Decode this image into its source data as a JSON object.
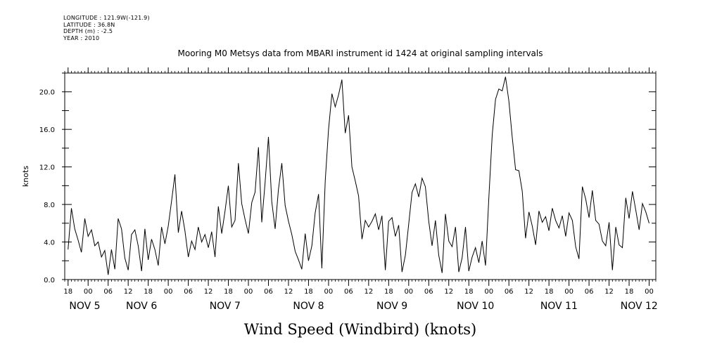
{
  "header": {
    "meta_lines": [
      "LONGITUDE : 121.9W(-121.9)",
      "LATITUDE : 36.8N",
      "DEPTH (m) : -2.5",
      "YEAR : 2010"
    ]
  },
  "chart_data": {
    "type": "line",
    "title": "Mooring M0 Metsys data from MBARI instrument id 1424 at original sampling intervals",
    "xlabel": "Wind Speed (Windbird) (knots)",
    "ylabel": "knots",
    "ylim": [
      0,
      22
    ],
    "xlim_hours": [
      -7,
      170
    ],
    "yticks": [
      "0.0",
      "4.0",
      "8.0",
      "12.0",
      "16.0",
      "20.0"
    ],
    "x_hour_ticks": [
      {
        "h": -6,
        "label": "18"
      },
      {
        "h": 0,
        "label": "00"
      },
      {
        "h": 6,
        "label": "06"
      },
      {
        "h": 12,
        "label": "12"
      },
      {
        "h": 18,
        "label": "18"
      },
      {
        "h": 24,
        "label": "00"
      },
      {
        "h": 30,
        "label": "06"
      },
      {
        "h": 36,
        "label": "12"
      },
      {
        "h": 42,
        "label": "18"
      },
      {
        "h": 48,
        "label": "00"
      },
      {
        "h": 54,
        "label": "06"
      },
      {
        "h": 60,
        "label": "12"
      },
      {
        "h": 66,
        "label": "18"
      },
      {
        "h": 72,
        "label": "00"
      },
      {
        "h": 78,
        "label": "06"
      },
      {
        "h": 84,
        "label": "12"
      },
      {
        "h": 90,
        "label": "18"
      },
      {
        "h": 96,
        "label": "00"
      },
      {
        "h": 102,
        "label": "06"
      },
      {
        "h": 108,
        "label": "12"
      },
      {
        "h": 114,
        "label": "18"
      },
      {
        "h": 120,
        "label": "00"
      },
      {
        "h": 126,
        "label": "06"
      },
      {
        "h": 132,
        "label": "12"
      },
      {
        "h": 138,
        "label": "18"
      },
      {
        "h": 144,
        "label": "00"
      },
      {
        "h": 150,
        "label": "06"
      },
      {
        "h": 156,
        "label": "12"
      },
      {
        "h": 162,
        "label": "18"
      },
      {
        "h": 168,
        "label": "00"
      }
    ],
    "date_labels": [
      {
        "h": -1,
        "label": "NOV  5"
      },
      {
        "h": 16,
        "label": "NOV  6"
      },
      {
        "h": 41,
        "label": "NOV  7"
      },
      {
        "h": 66,
        "label": "NOV  8"
      },
      {
        "h": 91,
        "label": "NOV  9"
      },
      {
        "h": 116,
        "label": "NOV 10"
      },
      {
        "h": 141,
        "label": "NOV 11"
      },
      {
        "h": 165,
        "label": "NOV 12"
      }
    ],
    "series": [
      {
        "color": "#000000",
        "hours": [
          -6.0,
          -5.0,
          -4.0,
          -3.0,
          -2.0,
          -1.0,
          0.0,
          1.0,
          2.0,
          3.0,
          4.0,
          5.0,
          6.0,
          7.0,
          8.0,
          9.0,
          10.0,
          11.0,
          12.0,
          13.0,
          14.0,
          15.0,
          16.0,
          17.0,
          18.0,
          19.0,
          20.0,
          21.0,
          22.0,
          23.0,
          24.0,
          25.0,
          26.0,
          27.0,
          28.0,
          29.0,
          30.0,
          31.0,
          32.0,
          33.0,
          34.0,
          35.0,
          36.0,
          37.0,
          38.0,
          39.0,
          40.0,
          41.0,
          42.0,
          43.0,
          44.0,
          45.0,
          46.0,
          47.0,
          48.0,
          49.0,
          50.0,
          51.0,
          52.0,
          53.0,
          54.0,
          55.0,
          56.0,
          57.0,
          58.0,
          59.0,
          60.0,
          61.0,
          62.0,
          63.0,
          64.0,
          65.0,
          66.0,
          67.0,
          68.0,
          69.0,
          70.0,
          71.0,
          72.0,
          73.0,
          74.0,
          75.0,
          76.0,
          77.0,
          78.0,
          79.0,
          80.0,
          81.0,
          82.0,
          83.0,
          84.0,
          85.0,
          86.0,
          87.0,
          88.0,
          89.0,
          90.0,
          91.0,
          92.0,
          93.0,
          94.0,
          95.0,
          96.0,
          97.0,
          98.0,
          99.0,
          100.0,
          101.0,
          102.0,
          103.0,
          104.0,
          105.0,
          106.0,
          107.0,
          108.0,
          109.0,
          110.0,
          111.0,
          112.0,
          113.0,
          114.0,
          115.0,
          116.0,
          117.0,
          118.0,
          119.0,
          120.0,
          121.0,
          122.0,
          123.0,
          124.0,
          125.0,
          126.0,
          127.0,
          128.0,
          129.0,
          130.0,
          131.0,
          132.0,
          133.0,
          134.0,
          135.0,
          136.0,
          137.0,
          138.0,
          139.0,
          140.0,
          141.0,
          142.0,
          143.0,
          144.0,
          145.0,
          146.0,
          147.0,
          148.0,
          149.0,
          150.0,
          151.0,
          152.0,
          153.0,
          154.0,
          155.0,
          156.0,
          157.0,
          158.0,
          159.0,
          160.0,
          161.0,
          162.0,
          163.0,
          164.0,
          165.0,
          166.0,
          167.0,
          168.0
        ],
        "values": [
          3.2,
          7.6,
          5.4,
          4.2,
          2.9,
          6.5,
          4.6,
          5.3,
          3.6,
          4.0,
          2.4,
          3.1,
          0.5,
          3.2,
          1.1,
          6.5,
          5.4,
          2.3,
          1.0,
          4.8,
          5.3,
          3.6,
          0.9,
          5.4,
          2.1,
          4.3,
          3.2,
          1.5,
          5.6,
          3.8,
          5.7,
          8.4,
          11.2,
          5.0,
          7.3,
          5.2,
          2.4,
          4.1,
          3.2,
          5.6,
          4.0,
          4.8,
          3.4,
          5.1,
          2.4,
          7.8,
          4.9,
          7.3,
          10.0,
          5.6,
          6.3,
          12.4,
          8.1,
          6.4,
          4.9,
          8.2,
          9.3,
          14.1,
          6.1,
          10.3,
          15.2,
          8.3,
          5.4,
          9.6,
          12.4,
          7.9,
          6.2,
          4.8,
          3.0,
          2.1,
          1.1,
          4.9,
          2.0,
          3.6,
          7.1,
          9.1,
          1.2,
          10.5,
          16.0,
          19.8,
          18.4,
          19.7,
          21.3,
          15.6,
          17.5,
          12.0,
          10.5,
          8.9,
          4.3,
          6.3,
          5.6,
          6.2,
          7.0,
          5.3,
          6.8,
          1.0,
          6.2,
          6.6,
          4.6,
          5.8,
          0.8,
          2.6,
          5.9,
          9.3,
          10.2,
          8.8,
          10.8,
          9.9,
          6.2,
          3.6,
          6.3,
          2.6,
          0.7,
          7.0,
          4.1,
          3.5,
          5.6,
          0.8,
          2.3,
          5.6,
          0.9,
          2.4,
          3.4,
          1.8,
          4.1,
          1.5,
          8.7,
          15.4,
          19.2,
          20.3,
          20.1,
          21.6,
          19.0,
          15.2,
          11.7,
          11.6,
          9.4,
          4.4,
          7.2,
          5.7,
          3.7,
          7.3,
          6.1,
          6.7,
          5.2,
          7.6,
          6.3,
          5.5,
          6.8,
          4.6,
          7.1,
          6.3,
          3.5,
          2.2,
          9.9,
          8.6,
          6.6,
          9.5,
          6.3,
          5.9,
          4.1,
          3.6,
          6.1,
          1.0,
          5.6,
          3.7,
          3.4,
          8.7,
          6.5,
          9.4,
          7.4,
          5.3,
          8.1,
          7.2,
          6.0
        ]
      }
    ]
  }
}
